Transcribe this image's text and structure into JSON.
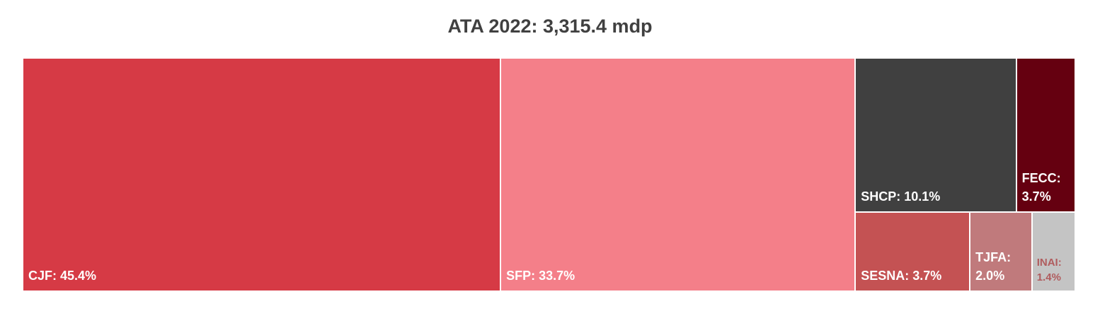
{
  "chart_data": {
    "type": "treemap",
    "title": "ATA 2022: 3,315.4 mdp",
    "categories": [
      "CJF",
      "SFP",
      "SHCP",
      "FECC",
      "SESNA",
      "TJFA",
      "INAI"
    ],
    "values": [
      45.4,
      33.7,
      10.1,
      3.7,
      3.7,
      2.0,
      1.4
    ],
    "value_labels": [
      "CJF: 45.4%",
      "SFP: 33.7%",
      "SHCP: 10.1%",
      "FECC: 3.7%",
      "SESNA: 3.7%",
      "TJFA: 2.0%",
      "INAI: 1.4%"
    ],
    "colors": [
      "#d63a45",
      "#f47f89",
      "#404040",
      "#650010",
      "#c45253",
      "#c07a7c",
      "#c4c4c4"
    ],
    "label_colors": [
      "#ffffff",
      "#ffffff",
      "#ffffff",
      "#ffffff",
      "#ffffff",
      "#ffffff",
      "#b05c5e"
    ]
  }
}
